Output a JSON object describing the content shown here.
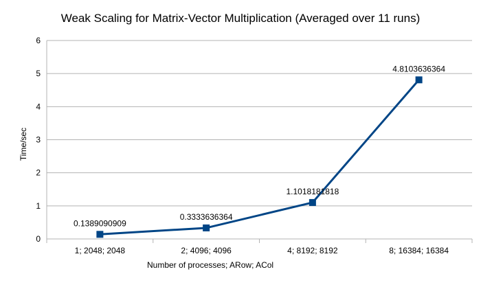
{
  "chart_data": {
    "type": "line",
    "title": "Weak Scaling for Matrix-Vector Multiplication (Averaged over 11 runs)",
    "xlabel": "Number of processes;  ARow; ACol",
    "ylabel": "Time/sec",
    "categories": [
      "1; 2048; 2048",
      "2; 4096; 4096",
      "4; 8192; 8192",
      "8; 16384; 16384"
    ],
    "series": [
      {
        "values": [
          0.1389090909,
          0.3333636364,
          1.1018181818,
          4.8103636364
        ],
        "labels": [
          "0.1389090909",
          "0.3333636364",
          "1.1018181818",
          "4.8103636364"
        ],
        "color": "#004586"
      }
    ],
    "ylim": [
      0,
      6
    ],
    "yticks": [
      "0",
      "1",
      "2",
      "3",
      "4",
      "5",
      "6"
    ],
    "grid": true,
    "legend": "none"
  }
}
